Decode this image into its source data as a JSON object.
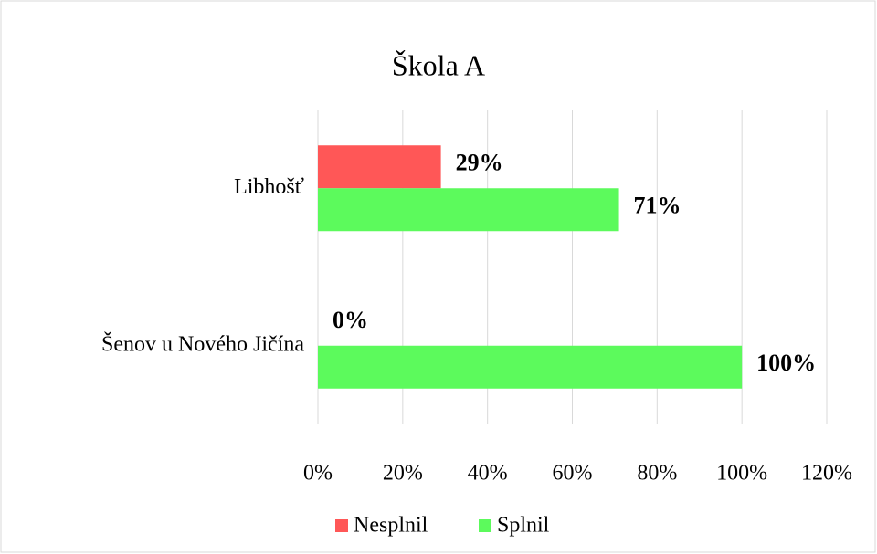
{
  "chart_data": {
    "type": "bar",
    "orientation": "horizontal",
    "title": "Škola A",
    "categories": [
      "Libhošť",
      "Šenov u Nového Jičína"
    ],
    "series": [
      {
        "name": "Nesplnil",
        "color": "#ff5757",
        "values": [
          29,
          0
        ],
        "value_labels": [
          "29%",
          "0%"
        ]
      },
      {
        "name": "Splnil",
        "color": "#5cfa5c",
        "values": [
          71,
          100
        ],
        "value_labels": [
          "71%",
          "100%"
        ]
      }
    ],
    "xlim": [
      0,
      120
    ],
    "xticks": [
      {
        "value": 0,
        "label": "0%"
      },
      {
        "value": 20,
        "label": "20%"
      },
      {
        "value": 40,
        "label": "40%"
      },
      {
        "value": 60,
        "label": "60%"
      },
      {
        "value": 80,
        "label": "80%"
      },
      {
        "value": 100,
        "label": "100%"
      },
      {
        "value": 120,
        "label": "120%"
      }
    ],
    "grid": true,
    "legend": "bottom"
  }
}
